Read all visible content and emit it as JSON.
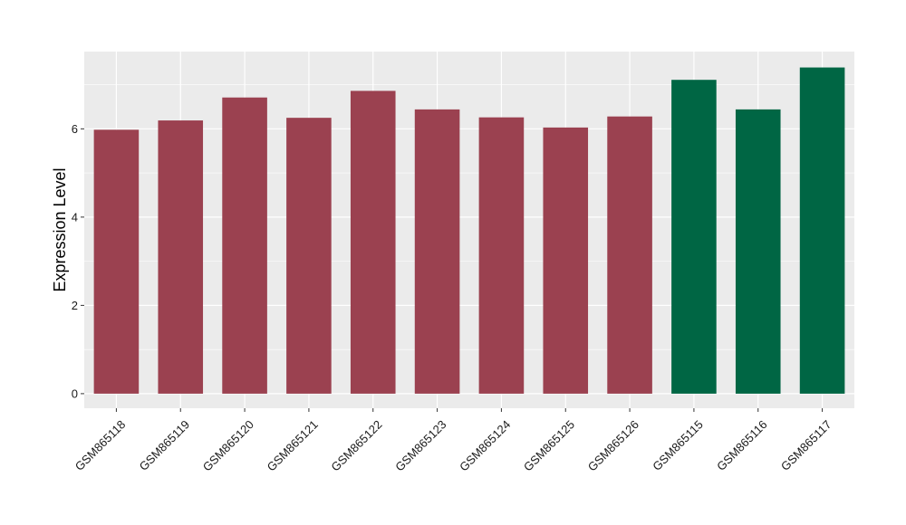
{
  "chart_data": {
    "type": "bar",
    "title": "",
    "xlabel": "",
    "ylabel": "Expression Level",
    "categories": [
      "GSM865118",
      "GSM865119",
      "GSM865120",
      "GSM865121",
      "GSM865122",
      "GSM865123",
      "GSM865124",
      "GSM865125",
      "GSM865126",
      "GSM865115",
      "GSM865116",
      "GSM865117"
    ],
    "values": [
      5.98,
      6.19,
      6.71,
      6.25,
      6.86,
      6.44,
      6.26,
      6.03,
      6.28,
      7.11,
      6.44,
      7.39
    ],
    "groups": [
      "a",
      "a",
      "a",
      "a",
      "a",
      "a",
      "a",
      "a",
      "a",
      "b",
      "b",
      "b"
    ],
    "group_colors": {
      "a": "#9B4150",
      "b": "#006644"
    },
    "ylim": [
      -0.33,
      7.75
    ],
    "yticks": [
      0,
      2,
      4,
      6
    ],
    "panel_background": "#EBEBEB",
    "grid_color": "#FFFFFF",
    "grid": true,
    "legend": "none"
  }
}
